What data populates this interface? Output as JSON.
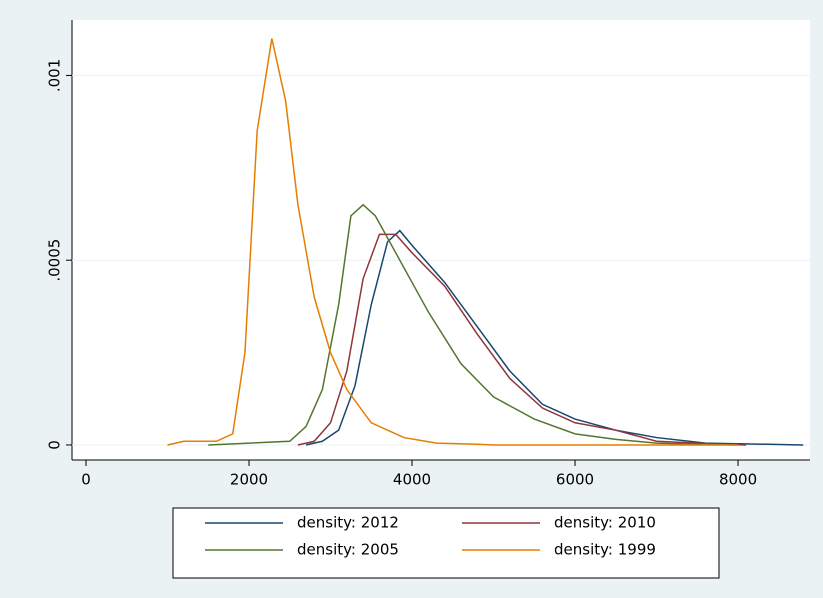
{
  "chart_data": {
    "type": "line",
    "xlim": [
      -172,
      8883
    ],
    "ylim": [
      -4.07e-05,
      0.00115
    ],
    "xticks": [
      0,
      2000,
      4000,
      6000,
      8000
    ],
    "yticks": [
      0,
      {
        "value": 0.0005,
        "label": ".0005"
      },
      {
        "value": 0.001,
        "label": ".001"
      }
    ],
    "grid": true,
    "legend": "bottom",
    "series": [
      {
        "name": "density: 2012",
        "color": "#1a476f",
        "x": [
          2700,
          2900,
          3100,
          3300,
          3500,
          3700,
          3850,
          4000,
          4400,
          4800,
          5200,
          5600,
          6000,
          6500,
          7000,
          7600,
          8800
        ],
        "values": [
          0,
          1e-05,
          4e-05,
          0.00016,
          0.00038,
          0.00055,
          0.00058,
          0.00054,
          0.00044,
          0.00032,
          0.0002,
          0.00011,
          7e-05,
          4e-05,
          2e-05,
          5e-06,
          0
        ]
      },
      {
        "name": "density: 2010",
        "color": "#90353b",
        "x": [
          2600,
          2800,
          3000,
          3200,
          3400,
          3600,
          3800,
          4000,
          4400,
          4800,
          5200,
          5600,
          6000,
          6500,
          7000,
          7500,
          8100
        ],
        "values": [
          0,
          1e-05,
          6e-05,
          0.0002,
          0.00045,
          0.00057,
          0.00057,
          0.00052,
          0.00043,
          0.0003,
          0.00018,
          0.0001,
          6e-05,
          4e-05,
          1e-05,
          5e-06,
          0
        ]
      },
      {
        "name": "density: 2005",
        "color": "#55752f",
        "x": [
          1500,
          2500,
          2700,
          2900,
          3100,
          3250,
          3400,
          3550,
          3800,
          4200,
          4600,
          5000,
          5500,
          6000,
          6500,
          7000,
          7500,
          8000
        ],
        "values": [
          0,
          1e-05,
          5e-05,
          0.00015,
          0.00038,
          0.00062,
          0.00065,
          0.00062,
          0.00052,
          0.00036,
          0.00022,
          0.00013,
          7e-05,
          3e-05,
          1.5e-05,
          5e-06,
          2e-06,
          0
        ]
      },
      {
        "name": "density: 1999",
        "color": "#e37e00",
        "x": [
          1000,
          1200,
          1600,
          1800,
          1950,
          2100,
          2280,
          2450,
          2600,
          2800,
          3000,
          3200,
          3500,
          3900,
          4300,
          4800,
          5000,
          8000
        ],
        "values": [
          0,
          1e-05,
          1e-05,
          3e-05,
          0.00025,
          0.00085,
          0.0011,
          0.00093,
          0.00065,
          0.0004,
          0.00025,
          0.00015,
          6e-05,
          2e-05,
          5e-06,
          2e-06,
          0,
          0
        ]
      }
    ]
  }
}
